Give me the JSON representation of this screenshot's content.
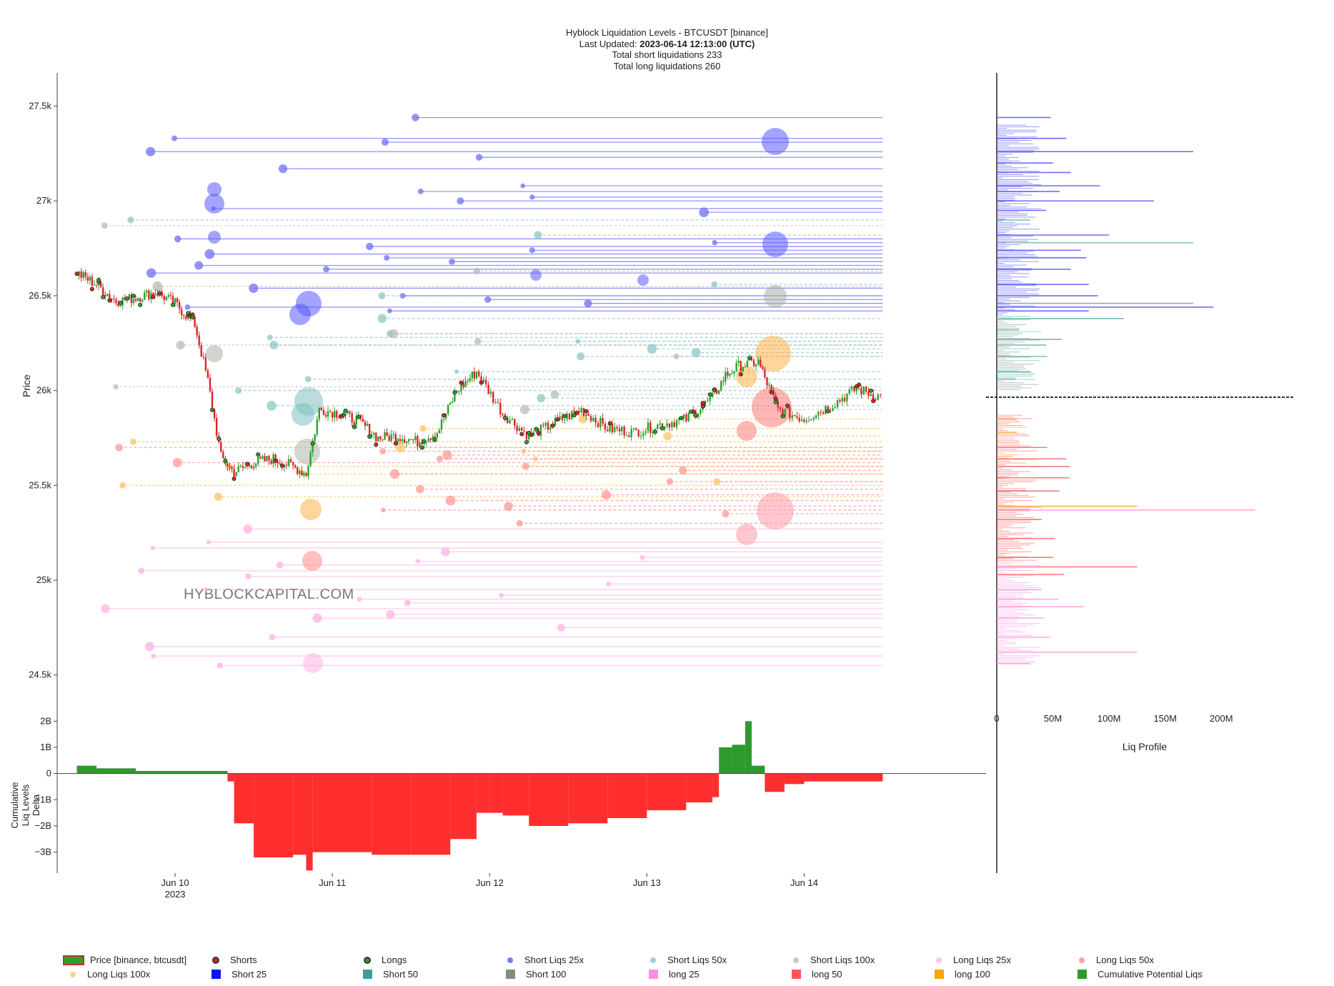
{
  "title": {
    "line1": "Hyblock Liquidation Levels - BTCUSDT [binance]",
    "updated_label": "Last Updated:",
    "updated_value": "2023-06-14 12:13:00 (UTC)",
    "line3": "Total short liquidations 233",
    "line4": "Total long liquidations 260"
  },
  "watermark": "HYBLOCKCAPITAL.COM",
  "colors": {
    "short25": "#3b3bff",
    "short50": "#5fb3b3",
    "short100": "#9aa39a",
    "long25": "#ff8fd8",
    "long50": "#ff5a5a",
    "long100": "#ffa500",
    "cum_pos": "#2e9a2e",
    "cum_neg": "#ff2e2e",
    "price_up": "#2ca02c",
    "price_down": "#d62728"
  },
  "chart_data": [
    {
      "type": "line",
      "name": "main-price-liquidation-chart",
      "xlabel": "",
      "ylabel": "Price",
      "x_ticks": [
        "Jun 10",
        "Jun 11",
        "Jun 12",
        "Jun 13",
        "Jun 14"
      ],
      "x_tick_sub": [
        "2023",
        "",
        "",
        "",
        ""
      ],
      "xlim": [
        "2023-06-09 06:00",
        "2023-06-14 21:00"
      ],
      "y_ticks": [
        27500,
        27000,
        26500,
        26000,
        25500,
        25000,
        24500
      ],
      "y_tick_labels": [
        "27.5k",
        "27k",
        "26.5k",
        "26k",
        "25.5k",
        "25k",
        "24.5k"
      ],
      "ylim": [
        24450,
        27600
      ],
      "price_series": {
        "x": [
          "2023-06-09 09:00",
          "2023-06-09 12:00",
          "2023-06-09 15:00",
          "2023-06-09 18:00",
          "2023-06-09 21:00",
          "2023-06-10 00:00",
          "2023-06-10 03:00",
          "2023-06-10 05:00",
          "2023-06-10 07:00",
          "2023-06-10 09:00",
          "2023-06-10 12:00",
          "2023-06-10 15:00",
          "2023-06-10 18:00",
          "2023-06-10 20:00",
          "2023-06-10 22:00",
          "2023-06-11 01:00",
          "2023-06-11 04:00",
          "2023-06-11 07:00",
          "2023-06-11 10:00",
          "2023-06-11 13:00",
          "2023-06-11 16:00",
          "2023-06-11 19:00",
          "2023-06-11 22:00",
          "2023-06-12 02:00",
          "2023-06-12 06:00",
          "2023-06-12 10:00",
          "2023-06-12 14:00",
          "2023-06-12 18:00",
          "2023-06-12 22:00",
          "2023-06-13 02:00",
          "2023-06-13 06:00",
          "2023-06-13 10:00",
          "2023-06-13 12:00",
          "2023-06-13 14:00",
          "2023-06-13 17:00",
          "2023-06-13 20:00",
          "2023-06-14 00:00",
          "2023-06-14 04:00",
          "2023-06-14 08:00",
          "2023-06-14 12:00"
        ],
        "y": [
          26620,
          26560,
          26470,
          26490,
          26520,
          26460,
          26350,
          26050,
          25650,
          25570,
          25620,
          25640,
          25600,
          25560,
          25900,
          25880,
          25840,
          25750,
          25760,
          25730,
          25780,
          26000,
          26100,
          25880,
          25760,
          25830,
          25900,
          25800,
          25780,
          25820,
          25850,
          25960,
          26080,
          26130,
          26150,
          25900,
          25850,
          25920,
          26010,
          25960
        ]
      },
      "liquidation_levels": {
        "short_25x": [
          27440,
          27330,
          27310,
          27260,
          27230,
          27170,
          27080,
          27050,
          27020,
          27000,
          26960,
          26940,
          26800,
          26780,
          26760,
          26740,
          26720,
          26700,
          26680,
          26660,
          26640,
          26620,
          26540,
          26500,
          26480,
          26460,
          26440,
          26420
        ],
        "short_50x": [
          26900,
          26820,
          26560,
          26500,
          26380,
          26300,
          26280,
          26260,
          26240,
          26220,
          26200,
          26180,
          26100,
          26060,
          26000,
          25960,
          25920
        ],
        "short_100x": [
          26870,
          26630,
          26550,
          26300,
          26260,
          26240,
          26180,
          26020,
          25980,
          25900
        ],
        "long_25x": [
          25270,
          25200,
          25170,
          25150,
          25120,
          25100,
          25080,
          25050,
          25020,
          24980,
          24950,
          24920,
          24900,
          24880,
          24850,
          24820,
          24800,
          24750,
          24700,
          24650,
          24600,
          24550
        ],
        "long_50x": [
          25700,
          25680,
          25660,
          25640,
          25620,
          25600,
          25580,
          25560,
          25520,
          25480,
          25450,
          25420,
          25390,
          25370,
          25350,
          25300
        ],
        "long_100x": [
          25850,
          25800,
          25760,
          25730,
          25700,
          25680,
          25640,
          25600,
          25560,
          25520,
          25500,
          25440
        ]
      }
    },
    {
      "type": "area",
      "name": "cumulative-liq-levels-delta",
      "ylabel": "Cumulative Liq Levels Delta",
      "y_ticks": [
        2000000000,
        1000000000,
        0,
        -1000000000,
        -2000000000,
        -3000000000
      ],
      "y_tick_labels": [
        "2B",
        "1B",
        "0",
        "−1B",
        "−2B",
        "−3B"
      ],
      "ylim": [
        -3800000000,
        2200000000
      ],
      "x": [
        "2023-06-09 09:00",
        "2023-06-09 12:00",
        "2023-06-09 18:00",
        "2023-06-10 00:00",
        "2023-06-10 06:00",
        "2023-06-10 08:00",
        "2023-06-10 09:00",
        "2023-06-10 12:00",
        "2023-06-10 18:00",
        "2023-06-10 20:00",
        "2023-06-10 21:00",
        "2023-06-11 06:00",
        "2023-06-11 12:00",
        "2023-06-11 18:00",
        "2023-06-11 22:00",
        "2023-06-12 00:00",
        "2023-06-12 02:00",
        "2023-06-12 06:00",
        "2023-06-12 12:00",
        "2023-06-12 18:00",
        "2023-06-13 00:00",
        "2023-06-13 06:00",
        "2023-06-13 10:00",
        "2023-06-13 11:00",
        "2023-06-13 13:00",
        "2023-06-13 15:00",
        "2023-06-13 16:00",
        "2023-06-13 18:00",
        "2023-06-13 21:00",
        "2023-06-14 00:00",
        "2023-06-14 06:00",
        "2023-06-14 12:00"
      ],
      "values": [
        300000000,
        200000000,
        100000000,
        100000000,
        100000000,
        -300000000,
        -1900000000,
        -3200000000,
        -3100000000,
        -3700000000,
        -3000000000,
        -3100000000,
        -3100000000,
        -2500000000,
        -1500000000,
        -1500000000,
        -1600000000,
        -2000000000,
        -1900000000,
        -1700000000,
        -1400000000,
        -1100000000,
        -900000000,
        1000000000,
        1100000000,
        2000000000,
        300000000,
        -700000000,
        -400000000,
        -300000000,
        -300000000,
        -200000000
      ]
    },
    {
      "type": "bar",
      "name": "liq-profile",
      "xlabel": "Liq Profile",
      "x_ticks": [
        0,
        50000000,
        100000000,
        150000000,
        200000000
      ],
      "x_tick_labels": [
        "0",
        "50M",
        "100M",
        "150M",
        "200M"
      ],
      "xlim": [
        0,
        245000000
      ],
      "current_price": 25965,
      "bars": [
        {
          "price": 27440,
          "value": 48000000,
          "kind": "short25"
        },
        {
          "price": 27330,
          "value": 62000000,
          "kind": "short25"
        },
        {
          "price": 27260,
          "value": 175000000,
          "kind": "short25"
        },
        {
          "price": 27200,
          "value": 50000000,
          "kind": "short25"
        },
        {
          "price": 27150,
          "value": 66000000,
          "kind": "short25"
        },
        {
          "price": 27080,
          "value": 92000000,
          "kind": "short25"
        },
        {
          "price": 27050,
          "value": 56000000,
          "kind": "short25"
        },
        {
          "price": 27000,
          "value": 140000000,
          "kind": "short25"
        },
        {
          "price": 26950,
          "value": 44000000,
          "kind": "short25"
        },
        {
          "price": 26900,
          "value": 30000000,
          "kind": "short50"
        },
        {
          "price": 26820,
          "value": 100000000,
          "kind": "short25"
        },
        {
          "price": 26780,
          "value": 175000000,
          "kind": "short50"
        },
        {
          "price": 26740,
          "value": 75000000,
          "kind": "short25"
        },
        {
          "price": 26700,
          "value": 80000000,
          "kind": "short25"
        },
        {
          "price": 26640,
          "value": 66000000,
          "kind": "short25"
        },
        {
          "price": 26560,
          "value": 82000000,
          "kind": "short25"
        },
        {
          "price": 26500,
          "value": 90000000,
          "kind": "short25"
        },
        {
          "price": 26460,
          "value": 175000000,
          "kind": "short100"
        },
        {
          "price": 26440,
          "value": 193000000,
          "kind": "short25"
        },
        {
          "price": 26420,
          "value": 82000000,
          "kind": "short25"
        },
        {
          "price": 26380,
          "value": 113000000,
          "kind": "short50"
        },
        {
          "price": 26320,
          "value": 20000000,
          "kind": "short50"
        },
        {
          "price": 26270,
          "value": 58000000,
          "kind": "short100"
        },
        {
          "price": 26240,
          "value": 44000000,
          "kind": "short50"
        },
        {
          "price": 26180,
          "value": 45000000,
          "kind": "short50"
        },
        {
          "price": 26100,
          "value": 30000000,
          "kind": "short50"
        },
        {
          "price": 26060,
          "value": 17000000,
          "kind": "short50"
        },
        {
          "price": 25850,
          "value": 18000000,
          "kind": "long100"
        },
        {
          "price": 25780,
          "value": 18000000,
          "kind": "long100"
        },
        {
          "price": 25700,
          "value": 45000000,
          "kind": "long50"
        },
        {
          "price": 25640,
          "value": 62000000,
          "kind": "long50"
        },
        {
          "price": 25600,
          "value": 65000000,
          "kind": "long50"
        },
        {
          "price": 25540,
          "value": 65000000,
          "kind": "long50"
        },
        {
          "price": 25470,
          "value": 56000000,
          "kind": "long50"
        },
        {
          "price": 25390,
          "value": 125000000,
          "kind": "long100"
        },
        {
          "price": 25370,
          "value": 230000000,
          "kind": "long25"
        },
        {
          "price": 25320,
          "value": 40000000,
          "kind": "long50"
        },
        {
          "price": 25220,
          "value": 52000000,
          "kind": "long50"
        },
        {
          "price": 25120,
          "value": 50000000,
          "kind": "long50"
        },
        {
          "price": 25070,
          "value": 125000000,
          "kind": "long50"
        },
        {
          "price": 25030,
          "value": 60000000,
          "kind": "long50"
        },
        {
          "price": 24950,
          "value": 40000000,
          "kind": "long25"
        },
        {
          "price": 24900,
          "value": 55000000,
          "kind": "long25"
        },
        {
          "price": 24860,
          "value": 78000000,
          "kind": "long25"
        },
        {
          "price": 24800,
          "value": 42000000,
          "kind": "long25"
        },
        {
          "price": 24700,
          "value": 48000000,
          "kind": "long25"
        },
        {
          "price": 24620,
          "value": 125000000,
          "kind": "long25"
        },
        {
          "price": 24560,
          "value": 30000000,
          "kind": "long25"
        }
      ]
    }
  ],
  "legend": [
    {
      "label": "Price [binance, btcusdt]",
      "kind": "price"
    },
    {
      "label": "Shorts",
      "kind": "ring",
      "color": "#d62728"
    },
    {
      "label": "Longs",
      "kind": "ring",
      "color": "#2ca02c"
    },
    {
      "label": "Short Liqs 25x",
      "kind": "dot",
      "color": "#7b7bf0"
    },
    {
      "label": "Short Liqs 50x",
      "kind": "dot",
      "color": "#9fd0d0"
    },
    {
      "label": "Short Liqs 100x",
      "kind": "dot",
      "color": "#c7c9c4"
    },
    {
      "label": "Long Liqs 25x",
      "kind": "dot",
      "color": "#ffc3ea"
    },
    {
      "label": "Long Liqs 50x",
      "kind": "dot",
      "color": "#ffa3a3"
    },
    {
      "label": "Long Liqs 100x",
      "kind": "dot",
      "color": "#ffd38a"
    },
    {
      "label": "Short 25",
      "kind": "square",
      "color": "#0a14ff"
    },
    {
      "label": "Short 50",
      "kind": "square",
      "color": "#3a9f9f"
    },
    {
      "label": "Short 100",
      "kind": "square",
      "color": "#7f8f7f"
    },
    {
      "label": "long 25",
      "kind": "square",
      "color": "#ff8fe0"
    },
    {
      "label": "long 50",
      "kind": "square",
      "color": "#ff5555"
    },
    {
      "label": "long 100",
      "kind": "square",
      "color": "#ffa500"
    },
    {
      "label": "Cumulative Potential Liqs",
      "kind": "square",
      "color": "#2e9a2e"
    }
  ]
}
